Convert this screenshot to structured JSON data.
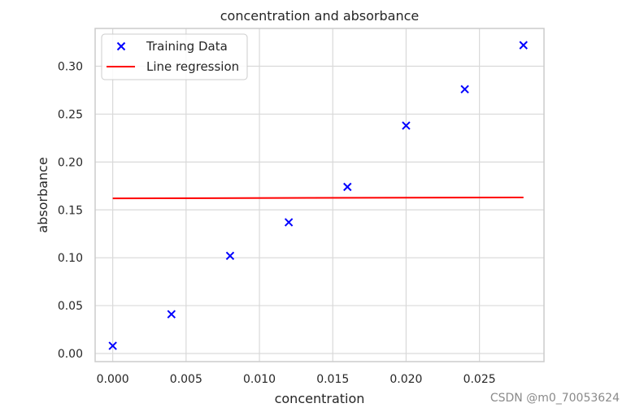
{
  "chart_data": {
    "type": "scatter",
    "title": "concentration and absorbance",
    "xlabel": "concentration",
    "ylabel": "absorbance",
    "xlim": [
      -0.0012,
      0.0294
    ],
    "ylim": [
      -0.0085,
      0.3395
    ],
    "x_ticks": [
      0.0,
      0.005,
      0.01,
      0.015,
      0.02,
      0.025
    ],
    "x_tick_labels": [
      "0.000",
      "0.005",
      "0.010",
      "0.015",
      "0.020",
      "0.025"
    ],
    "y_ticks": [
      0.0,
      0.05,
      0.1,
      0.15,
      0.2,
      0.25,
      0.3
    ],
    "y_tick_labels": [
      "0.00",
      "0.05",
      "0.10",
      "0.15",
      "0.20",
      "0.25",
      "0.30"
    ],
    "grid": true,
    "legend_position": "top-left",
    "series": [
      {
        "name": "Training Data",
        "kind": "scatter",
        "marker": "x",
        "color": "#0000ff",
        "x": [
          0.0,
          0.004,
          0.008,
          0.012,
          0.016,
          0.02,
          0.024,
          0.028
        ],
        "y": [
          0.008,
          0.041,
          0.102,
          0.137,
          0.174,
          0.238,
          0.276,
          0.322
        ]
      },
      {
        "name": "Line regression",
        "kind": "line",
        "color": "#ff0000",
        "x": [
          0.0,
          0.028
        ],
        "y": [
          0.162,
          0.163
        ]
      }
    ]
  },
  "watermark": "CSDN @m0_70053624"
}
